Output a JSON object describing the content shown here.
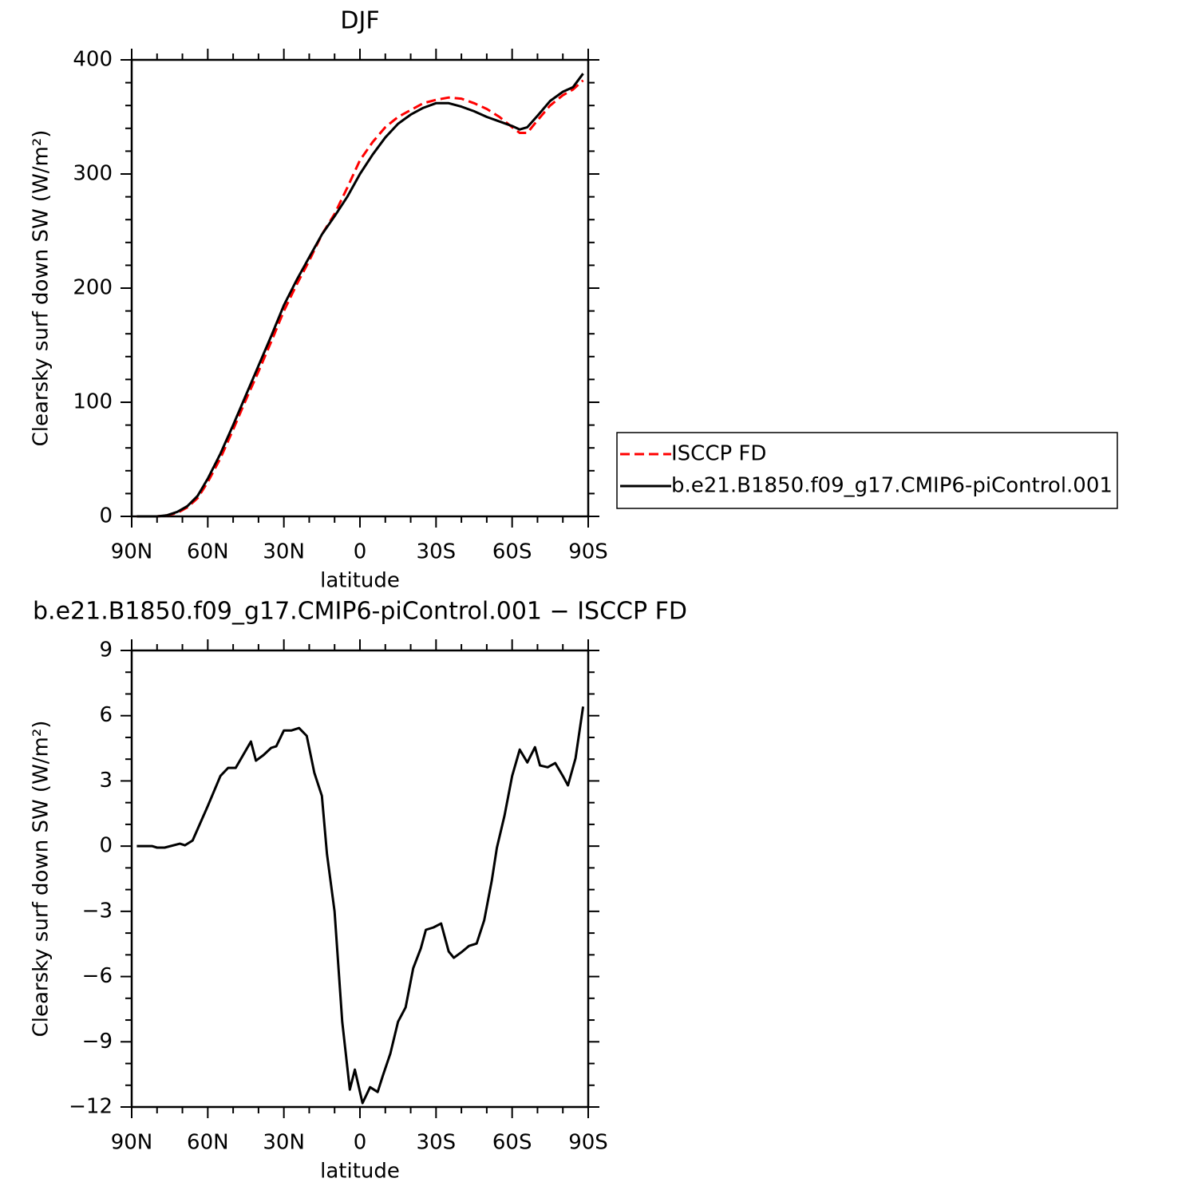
{
  "chart_data": [
    {
      "type": "line",
      "title": "DJF",
      "xlabel": "latitude",
      "ylabel": "Clearsky surf down SW (W/m²)",
      "xlim": [
        90,
        -90
      ],
      "xticks": [
        {
          "value": 90,
          "label": "90N"
        },
        {
          "value": 60,
          "label": "60N"
        },
        {
          "value": 30,
          "label": "30N"
        },
        0,
        {
          "value": -30,
          "label": "30S"
        },
        {
          "value": -60,
          "label": "60S"
        },
        {
          "value": -90,
          "label": "90S"
        }
      ],
      "ylim": [
        0,
        400
      ],
      "yticks": [
        0,
        100,
        200,
        300,
        400
      ],
      "legend": "right",
      "x": [
        88,
        84,
        80,
        76,
        72,
        68,
        64,
        60,
        55,
        50,
        45,
        40,
        35,
        30,
        25,
        20,
        15,
        10,
        5,
        0,
        -5,
        -10,
        -15,
        -20,
        -25,
        -30,
        -35,
        -40,
        -45,
        -50,
        -55,
        -60,
        -63,
        -66,
        -70,
        -75,
        -80,
        -84,
        -88
      ],
      "series": [
        {
          "name": "ISCCP FD",
          "color": "#ff0000",
          "dashed": true,
          "values": [
            0,
            0,
            0,
            1,
            3,
            8,
            16,
            30,
            51,
            76,
            102,
            127,
            153,
            180,
            203,
            224,
            247,
            265,
            288,
            312,
            328,
            341,
            350,
            356,
            362,
            365,
            367,
            366,
            362,
            357,
            350,
            341,
            336,
            336,
            347,
            360,
            369,
            374,
            382
          ]
        },
        {
          "name": "b.e21.B1850.f09_g17.CMIP6-piControl.001",
          "color": "#000000",
          "dashed": false,
          "values": [
            0,
            0,
            0,
            1,
            4,
            9,
            18,
            33,
            55,
            80,
            106,
            132,
            158,
            185,
            207,
            227,
            247,
            263,
            280,
            300,
            317,
            332,
            344,
            352,
            358,
            362,
            362,
            359,
            355,
            350,
            346,
            342,
            339,
            341,
            351,
            364,
            372,
            376,
            388
          ]
        }
      ]
    },
    {
      "type": "line",
      "title": "b.e21.B1850.f09_g17.CMIP6-piControl.001 − ISCCP FD",
      "xlabel": "latitude",
      "ylabel": "Clearsky surf down SW (W/m²)",
      "xlim": [
        90,
        -90
      ],
      "xticks": [
        {
          "value": 90,
          "label": "90N"
        },
        {
          "value": 60,
          "label": "60N"
        },
        {
          "value": 30,
          "label": "30N"
        },
        0,
        {
          "value": -30,
          "label": "30S"
        },
        {
          "value": -60,
          "label": "60S"
        },
        {
          "value": -90,
          "label": "90S"
        }
      ],
      "ylim": [
        -12,
        9
      ],
      "yticks": [
        {
          "value": -12,
          "label": "−12"
        },
        {
          "value": -9,
          "label": "−9"
        },
        {
          "value": -6,
          "label": "−6"
        },
        {
          "value": -3,
          "label": "−3"
        },
        0,
        3,
        6,
        9
      ],
      "color": "#000000",
      "x": [
        88,
        82,
        80,
        77,
        71,
        69,
        66,
        60,
        55,
        52,
        49,
        43,
        41,
        38,
        35,
        33,
        30,
        27,
        24,
        21,
        18,
        15,
        13,
        10,
        7,
        4,
        2,
        -1,
        -4,
        -7,
        -9,
        -12,
        -15,
        -18,
        -21,
        -24,
        -26,
        -29,
        -32,
        -35,
        -37,
        -40,
        -43,
        -46,
        -49,
        -52,
        -54,
        -57,
        -60,
        -63,
        -66,
        -69,
        -71,
        -74,
        -77,
        -80,
        -82,
        -85,
        -88
      ],
      "values": [
        0,
        0,
        -0.07,
        -0.07,
        0.11,
        0.04,
        0.26,
        1.84,
        3.23,
        3.6,
        3.6,
        4.81,
        3.93,
        4.19,
        4.52,
        4.59,
        5.32,
        5.32,
        5.43,
        5.07,
        3.38,
        2.31,
        -0.37,
        -3.01,
        -8.08,
        -11.2,
        -10.28,
        -11.82,
        -11.09,
        -11.31,
        -10.57,
        -9.54,
        -8.08,
        -7.42,
        -5.62,
        -4.7,
        -3.85,
        -3.74,
        -3.56,
        -4.85,
        -5.14,
        -4.88,
        -4.59,
        -4.48,
        -3.41,
        -1.58,
        -0.07,
        1.4,
        3.23,
        4.44,
        3.85,
        4.55,
        3.71,
        3.63,
        3.82,
        3.23,
        2.79,
        4.04,
        6.42
      ]
    }
  ]
}
